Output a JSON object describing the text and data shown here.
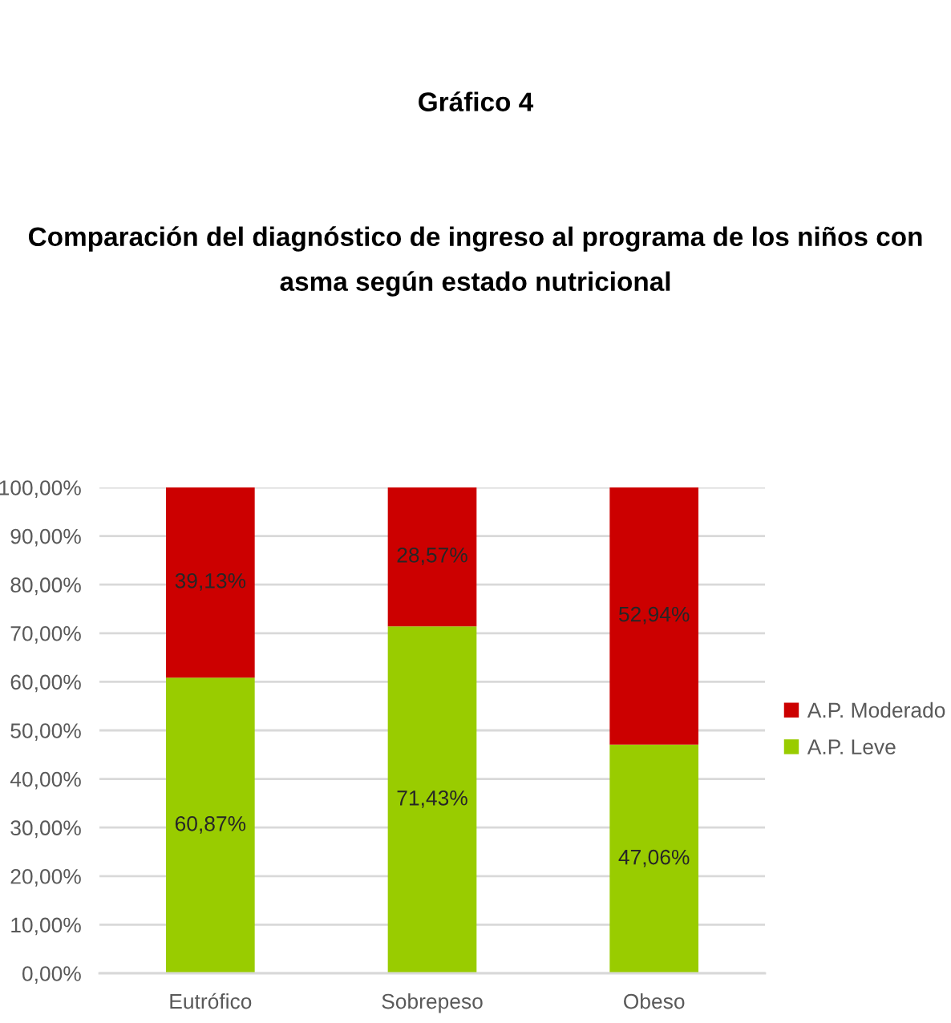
{
  "chart_data": {
    "type": "bar",
    "title": "Gráfico 4",
    "subtitle": "Comparación del diagnóstico de ingreso al programa de los niños con asma según estado nutricional",
    "categories": [
      "Eutrófico",
      "Sobrepeso",
      "Obeso"
    ],
    "stacked": true,
    "series": [
      {
        "name": "A.P. Leve",
        "color": "#99cc00",
        "values": [
          60.87,
          71.43,
          47.06
        ],
        "value_labels": [
          "60,87%",
          "71,43%",
          "47,06%"
        ]
      },
      {
        "name": "A.P. Moderado",
        "color": "#cc0000",
        "values": [
          39.13,
          28.57,
          52.94
        ],
        "value_labels": [
          "39,13%",
          "28,57%",
          "52,94%"
        ]
      }
    ],
    "ylim": [
      0,
      100
    ],
    "yticks": [
      {
        "value": 0,
        "label": "0,00%"
      },
      {
        "value": 10,
        "label": "10,00%"
      },
      {
        "value": 20,
        "label": "20,00%"
      },
      {
        "value": 30,
        "label": "30,00%"
      },
      {
        "value": 40,
        "label": "40,00%"
      },
      {
        "value": 50,
        "label": "50,00%"
      },
      {
        "value": 60,
        "label": "60,00%"
      },
      {
        "value": 70,
        "label": "70,00%"
      },
      {
        "value": 80,
        "label": "80,00%"
      },
      {
        "value": 90,
        "label": "90,00%"
      },
      {
        "value": 100,
        "label": "100,00%"
      }
    ],
    "grid": "y",
    "legend": "right"
  }
}
